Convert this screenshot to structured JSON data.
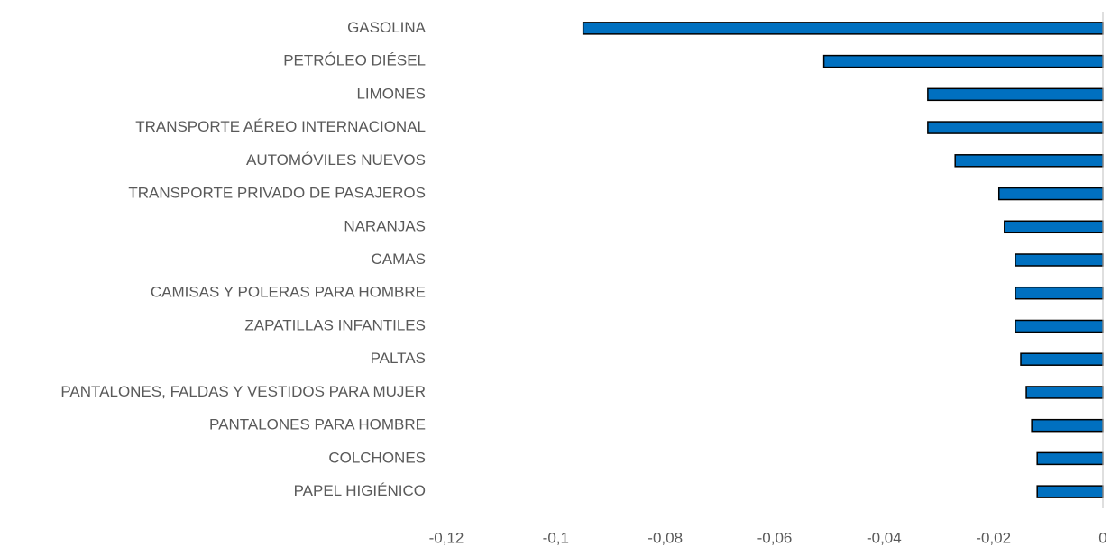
{
  "chart_data": {
    "type": "bar",
    "orientation": "horizontal",
    "categories": [
      "GASOLINA",
      "PETRÓLEO DIÉSEL",
      "LIMONES",
      "TRANSPORTE AÉREO INTERNACIONAL",
      "AUTOMÓVILES NUEVOS",
      "TRANSPORTE PRIVADO DE PASAJEROS",
      "NARANJAS",
      "CAMAS",
      "CAMISAS Y POLERAS PARA HOMBRE",
      "ZAPATILLAS INFANTILES",
      "PALTAS",
      "PANTALONES, FALDAS Y VESTIDOS PARA MUJER",
      "PANTALONES PARA HOMBRE",
      "COLCHONES",
      "PAPEL HIGIÉNICO"
    ],
    "values": [
      -0.095,
      -0.051,
      -0.032,
      -0.032,
      -0.027,
      -0.019,
      -0.018,
      -0.016,
      -0.016,
      -0.016,
      -0.015,
      -0.014,
      -0.013,
      -0.012,
      -0.012
    ],
    "color": "#0070c0",
    "xlim": [
      -0.12,
      0
    ],
    "xticks": [
      {
        "value": -0.12,
        "label": "-0,12"
      },
      {
        "value": -0.1,
        "label": "-0,1"
      },
      {
        "value": -0.08,
        "label": "-0,08"
      },
      {
        "value": -0.06,
        "label": "-0,06"
      },
      {
        "value": -0.04,
        "label": "-0,04"
      },
      {
        "value": -0.02,
        "label": "-0,02"
      },
      0
    ],
    "grid": false
  }
}
